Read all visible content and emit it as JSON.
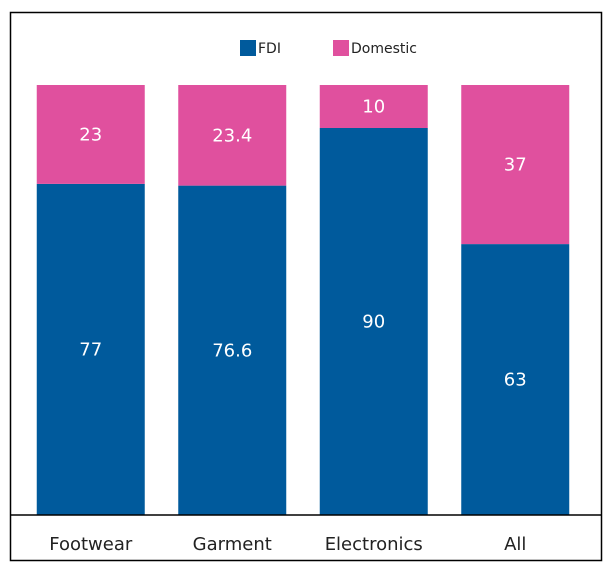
{
  "chart_data": {
    "type": "stacked_bar",
    "categories": [
      "Footwear",
      "Garment",
      "Electronics",
      "All"
    ],
    "series": [
      {
        "name": "FDI",
        "color": "#005a9c",
        "values": [
          77,
          76.6,
          90,
          63
        ]
      },
      {
        "name": "Domestic",
        "color": "#e0509e",
        "values": [
          23,
          23.4,
          10,
          37
        ]
      }
    ],
    "ylim": [
      0,
      100
    ],
    "legend": "top"
  }
}
